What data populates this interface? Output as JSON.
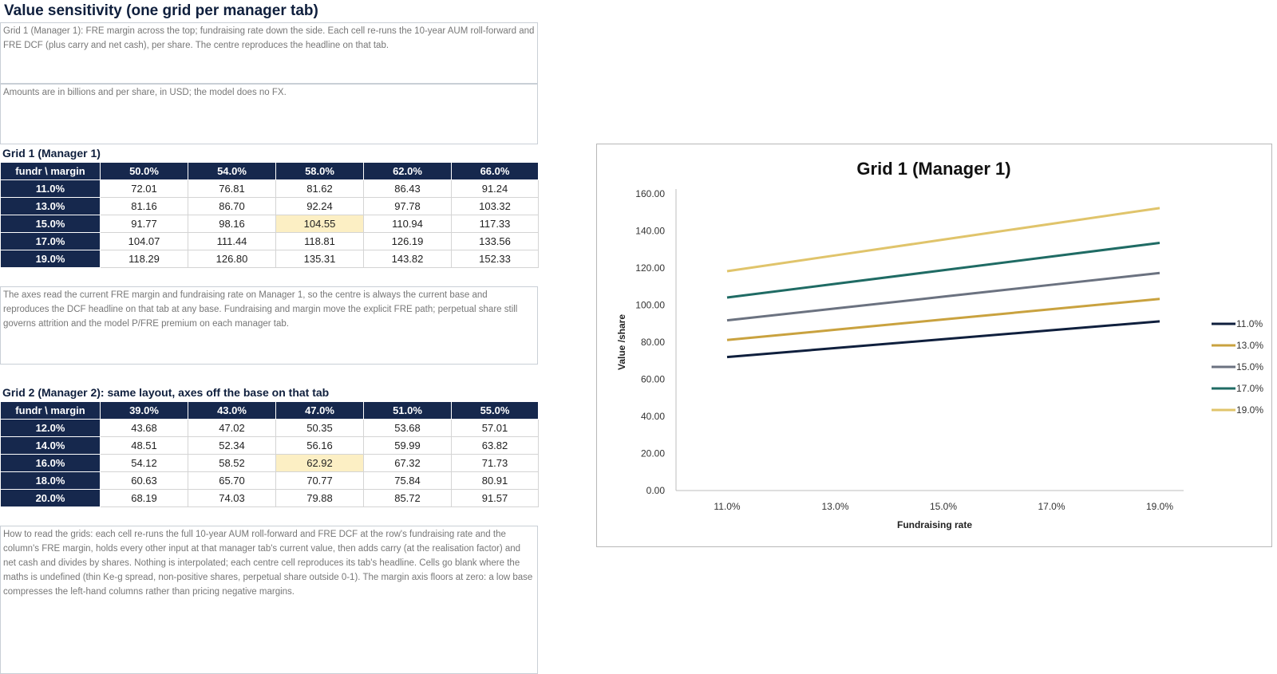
{
  "page_title": "Value sensitivity (one grid per manager tab)",
  "notes": {
    "intro": "Grid 1 (Manager 1): FRE margin across the top; fundraising rate down the side. Each cell re-runs the 10-year AUM roll-forward and FRE DCF (plus carry and net cash), per share. The centre reproduces the headline on that tab.",
    "units": "Amounts are in billions and per share, in USD; the model does no FX.",
    "axes": "The axes read the current FRE margin and fundraising rate on Manager 1, so the centre is always the current base and reproduces the DCF headline on that tab at any base. Fundraising and margin move the explicit FRE path; perpetual share still governs attrition and the model P/FRE premium on each manager tab.",
    "howto": "How to read the grids: each cell re-runs the full 10-year AUM roll-forward and FRE DCF at the row's fundraising rate and the column's FRE margin, holds every other input at that manager tab's current value, then adds carry (at the realisation factor) and net cash and divides by shares. Nothing is interpolated; each centre cell reproduces its tab's headline. Cells go blank where the maths is undefined (thin Ke-g spread, non-positive shares, perpetual share outside 0-1). The margin axis floors at zero: a low base compresses the left-hand columns rather than pricing negative margins."
  },
  "grid1": {
    "caption": "Grid 1 (Manager 1)",
    "corner": "fundr \\ margin",
    "cols": [
      "50.0%",
      "54.0%",
      "58.0%",
      "62.0%",
      "66.0%"
    ],
    "rows": [
      {
        "label": "11.0%",
        "values": [
          "72.01",
          "76.81",
          "81.62",
          "86.43",
          "91.24"
        ]
      },
      {
        "label": "13.0%",
        "values": [
          "81.16",
          "86.70",
          "92.24",
          "97.78",
          "103.32"
        ]
      },
      {
        "label": "15.0%",
        "values": [
          "91.77",
          "98.16",
          "104.55",
          "110.94",
          "117.33"
        ]
      },
      {
        "label": "17.0%",
        "values": [
          "104.07",
          "111.44",
          "118.81",
          "126.19",
          "133.56"
        ]
      },
      {
        "label": "19.0%",
        "values": [
          "118.29",
          "126.80",
          "135.31",
          "143.82",
          "152.33"
        ]
      }
    ]
  },
  "grid2": {
    "caption": "Grid 2 (Manager 2): same layout, axes off the base on that tab",
    "corner": "fundr \\ margin",
    "cols": [
      "39.0%",
      "43.0%",
      "47.0%",
      "51.0%",
      "55.0%"
    ],
    "rows": [
      {
        "label": "12.0%",
        "values": [
          "43.68",
          "47.02",
          "50.35",
          "53.68",
          "57.01"
        ]
      },
      {
        "label": "14.0%",
        "values": [
          "48.51",
          "52.34",
          "56.16",
          "59.99",
          "63.82"
        ]
      },
      {
        "label": "16.0%",
        "values": [
          "54.12",
          "58.52",
          "62.92",
          "67.32",
          "71.73"
        ]
      },
      {
        "label": "18.0%",
        "values": [
          "60.63",
          "65.70",
          "70.77",
          "75.84",
          "80.91"
        ]
      },
      {
        "label": "20.0%",
        "values": [
          "68.19",
          "74.03",
          "79.88",
          "85.72",
          "91.57"
        ]
      }
    ]
  },
  "colors": {
    "header_bg": "#16284d",
    "center_highlight": "#fcefc4",
    "series": [
      "#0f1f3d",
      "#c9a23f",
      "#6b7280",
      "#1f6b64",
      "#e0c46b"
    ]
  },
  "chart_data": {
    "type": "line",
    "title": "Grid 1 (Manager 1)",
    "xlabel": "Fundraising rate",
    "ylabel": "Value /share",
    "x": [
      "11.0%",
      "13.0%",
      "15.0%",
      "17.0%",
      "19.0%"
    ],
    "ylim": [
      0,
      160
    ],
    "yticks": [
      "0.00",
      "20.00",
      "40.00",
      "60.00",
      "80.00",
      "100.00",
      "120.00",
      "140.00",
      "160.00"
    ],
    "grid": false,
    "legend_position": "right",
    "series": [
      {
        "name": "11.0%",
        "values": [
          72.01,
          76.81,
          81.62,
          86.43,
          91.24
        ]
      },
      {
        "name": "13.0%",
        "values": [
          81.16,
          86.7,
          92.24,
          97.78,
          103.32
        ]
      },
      {
        "name": "15.0%",
        "values": [
          91.77,
          98.16,
          104.55,
          110.94,
          117.33
        ]
      },
      {
        "name": "17.0%",
        "values": [
          104.07,
          111.44,
          118.81,
          126.19,
          133.56
        ]
      },
      {
        "name": "19.0%",
        "values": [
          118.29,
          126.8,
          135.31,
          143.82,
          152.33
        ]
      }
    ]
  }
}
